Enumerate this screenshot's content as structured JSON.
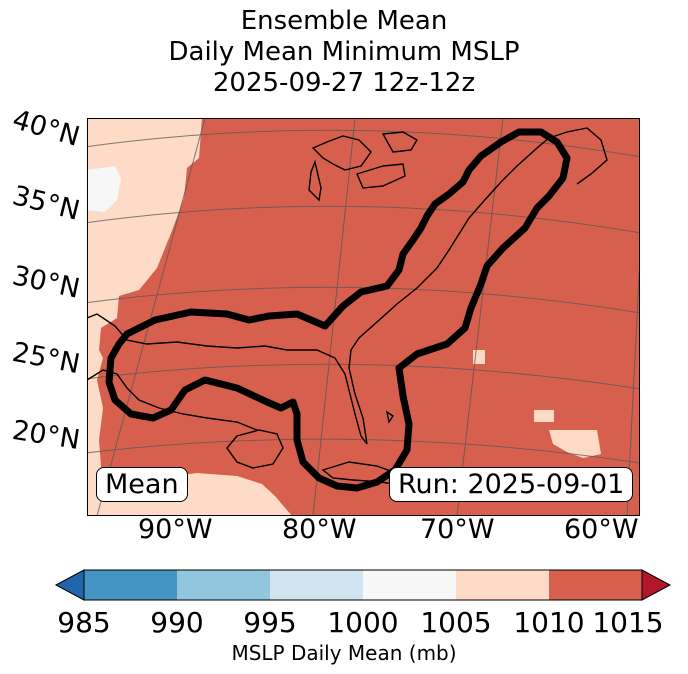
{
  "title": {
    "line1": "Ensemble Mean",
    "line2": "Daily Mean Minimum MSLP",
    "line3": "2025-09-27 12z-12z"
  },
  "map": {
    "lat_labels": [
      "40°N",
      "35°N",
      "30°N",
      "25°N",
      "20°N"
    ],
    "lon_labels": [
      "90°W",
      "80°W",
      "70°W",
      "60°W"
    ],
    "left_tag": "Mean",
    "right_tag": "Run: 2025-09-01",
    "fill_colors": {
      "1010_1015": "#d6604d",
      "1005_1010": "#fddbc7",
      "1000_1005": "#f7f7f7"
    },
    "contour_color": "#000000"
  },
  "colorbar": {
    "ticks": [
      "985",
      "990",
      "995",
      "1000",
      "1005",
      "1010",
      "1015"
    ],
    "colors": [
      "#2166ac",
      "#4393c3",
      "#92c5de",
      "#d1e5f0",
      "#f7f7f7",
      "#fddbc7",
      "#d6604d",
      "#b2182b"
    ],
    "label": "MSLP Daily Mean (mb)"
  }
}
